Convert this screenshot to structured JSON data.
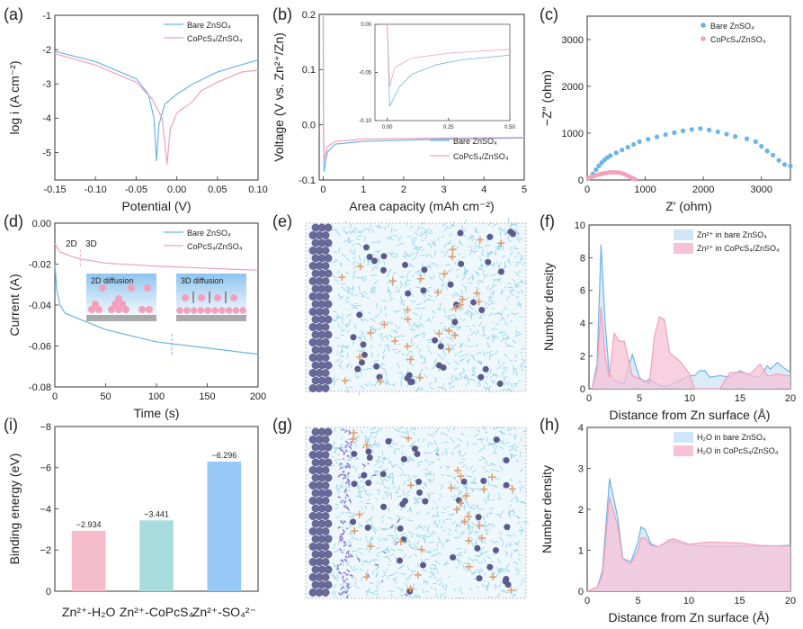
{
  "panel_labels": [
    "(a)",
    "(b)",
    "(c)",
    "(d)",
    "(e)",
    "(f)",
    "(g)",
    "(h)",
    "(i)"
  ],
  "colors": {
    "bare": "#6ab4e8",
    "copcs4": "#f2a0bb",
    "bare_fill": "#cfe6f7",
    "copcs4_fill": "#f6c2d5",
    "axis": "#555555",
    "zn_atom": "#6a6a9a",
    "water": "#8fd0e6",
    "ion": "#5a5a8c",
    "sulfate": "#e0a070",
    "copcs4_mol": "#8a70d0"
  },
  "chart_data": [
    {
      "id": "a",
      "type": "line",
      "xlabel": "Potential (V)",
      "ylabel": "log i (A cm⁻²)",
      "xlim": [
        -0.15,
        0.1
      ],
      "ylim": [
        -5.8,
        -1
      ],
      "xticks": [
        -0.15,
        -0.1,
        -0.05,
        0,
        0.05,
        0.1
      ],
      "xtick_labels": [
        "-0.15",
        "-0.10",
        "-0.05",
        "0.00",
        "0.05",
        "0.10"
      ],
      "yticks": [
        -5,
        -4,
        -3,
        -2,
        -1
      ],
      "ytick_labels": [
        "-5",
        "-4",
        "-3",
        "-2",
        "-1"
      ],
      "legend": "top-right",
      "series": [
        {
          "name": "Bare ZnSO₄",
          "color": "#6ab4e8",
          "x": [
            -0.15,
            -0.1,
            -0.05,
            -0.035,
            -0.028,
            -0.025,
            -0.022,
            -0.015,
            0,
            0.02,
            0.05,
            0.1
          ],
          "y": [
            -2.05,
            -2.35,
            -2.85,
            -3.3,
            -4,
            -5.25,
            -4.2,
            -3.6,
            -3.3,
            -3.0,
            -2.65,
            -2.3
          ]
        },
        {
          "name": "CoPcS₄/ZnSO₄",
          "color": "#f2a0bb",
          "x": [
            -0.15,
            -0.1,
            -0.05,
            -0.03,
            -0.018,
            -0.012,
            -0.008,
            0,
            0.02,
            0.03,
            0.05,
            0.08,
            0.1
          ],
          "y": [
            -2.12,
            -2.45,
            -2.95,
            -3.45,
            -4,
            -5.35,
            -4.3,
            -3.85,
            -3.5,
            -3.2,
            -2.95,
            -2.65,
            -2.6
          ]
        }
      ]
    },
    {
      "id": "b",
      "type": "line",
      "xlabel": "Area capacity (mAh cm⁻²)",
      "ylabel": "Voltage (V vs. Zn²⁺/Zn)",
      "xlim": [
        -0.1,
        5
      ],
      "ylim": [
        -0.1,
        0.2
      ],
      "xticks": [
        0,
        1,
        2,
        3,
        4,
        5
      ],
      "xtick_labels": [
        "0",
        "1",
        "2",
        "3",
        "4",
        "5"
      ],
      "yticks": [
        -0.1,
        0,
        0.1,
        0.2
      ],
      "ytick_labels": [
        "-0.1",
        "0.0",
        "0.1",
        "0.2"
      ],
      "legend": "bottom-right",
      "series": [
        {
          "name": "Bare ZnSO₄",
          "color": "#6ab4e8",
          "x": [
            0,
            0.005,
            0.02,
            0.1,
            0.3,
            1,
            3,
            5
          ],
          "y": [
            0.2,
            0,
            -0.085,
            -0.05,
            -0.035,
            -0.03,
            -0.026,
            -0.024
          ]
        },
        {
          "name": "CoPcS₄/ZnSO₄",
          "color": "#f2a0bb",
          "x": [
            0,
            0.005,
            0.02,
            0.1,
            0.3,
            1,
            3,
            5
          ],
          "y": [
            0.2,
            0,
            -0.065,
            -0.04,
            -0.03,
            -0.026,
            -0.024,
            -0.023
          ]
        }
      ]
    },
    {
      "id": "b-inset",
      "type": "line",
      "xlabel": "",
      "ylabel": "",
      "xlim": [
        -0.05,
        0.5
      ],
      "ylim": [
        -0.1,
        0
      ],
      "xticks": [
        0,
        0.25,
        0.5
      ],
      "xtick_labels": [
        "0.00",
        "0.25",
        "0.50"
      ],
      "yticks": [
        -0.1,
        -0.05,
        0
      ],
      "ytick_labels": [
        "-0.10",
        "-0.05",
        "0.00"
      ],
      "series": [
        {
          "color": "#6ab4e8",
          "x": [
            0,
            0.01,
            0.05,
            0.1,
            0.2,
            0.3,
            0.5
          ],
          "y": [
            0,
            -0.085,
            -0.065,
            -0.052,
            -0.042,
            -0.037,
            -0.032
          ]
        },
        {
          "color": "#f2a0bb",
          "x": [
            0,
            0.01,
            0.03,
            0.1,
            0.25,
            0.5
          ],
          "y": [
            0,
            -0.065,
            -0.045,
            -0.035,
            -0.03,
            -0.026
          ]
        }
      ]
    },
    {
      "id": "c",
      "type": "scatter",
      "xlabel": "Z′ (ohm)",
      "ylabel": "−Z″ (ohm)",
      "xlim": [
        0,
        3500
      ],
      "ylim": [
        0,
        3500
      ],
      "xticks": [
        0,
        1000,
        2000,
        3000
      ],
      "xtick_labels": [
        "0",
        "1000",
        "2000",
        "3000"
      ],
      "yticks": [
        0,
        1000,
        2000,
        3000
      ],
      "ytick_labels": [
        "0",
        "1000",
        "2000",
        "3000"
      ],
      "legend": "top-right",
      "series": [
        {
          "name": "Bare ZnSO₄",
          "color": "#6ab4e8",
          "x": [
            50,
            100,
            150,
            200,
            250,
            300,
            350,
            400,
            500,
            600,
            700,
            800,
            900,
            1050,
            1200,
            1350,
            1500,
            1650,
            1800,
            1950,
            2100,
            2250,
            2400,
            2550,
            2750,
            2900,
            3000,
            3100,
            3200,
            3300,
            3400,
            3500
          ],
          "y": [
            50,
            130,
            220,
            300,
            370,
            430,
            480,
            520,
            580,
            640,
            700,
            760,
            820,
            870,
            920,
            970,
            1010,
            1050,
            1080,
            1100,
            1070,
            1030,
            980,
            930,
            880,
            820,
            720,
            620,
            530,
            420,
            330,
            300
          ]
        },
        {
          "name": "CoPcS₄/ZnSO₄",
          "color": "#f2a0bb",
          "x": [
            30,
            80,
            130,
            180,
            230,
            280,
            330,
            380,
            430,
            480,
            530,
            580,
            630,
            680,
            730,
            780,
            820
          ],
          "y": [
            40,
            70,
            90,
            110,
            125,
            140,
            150,
            160,
            165,
            165,
            160,
            150,
            130,
            100,
            70,
            40,
            15
          ]
        }
      ]
    },
    {
      "id": "d",
      "type": "line",
      "xlabel": "Time (s)",
      "ylabel": "Current (A)",
      "xlim": [
        0,
        200
      ],
      "ylim": [
        -0.08,
        0
      ],
      "xticks": [
        0,
        50,
        100,
        150,
        200
      ],
      "xtick_labels": [
        "0",
        "50",
        "100",
        "150",
        "200"
      ],
      "yticks": [
        -0.08,
        -0.06,
        -0.04,
        -0.02,
        0
      ],
      "ytick_labels": [
        "-0.08",
        "-0.06",
        "-0.04",
        "-0.02",
        "0.00"
      ],
      "legend": "top-right",
      "series": [
        {
          "name": "Bare ZnSO₄",
          "color": "#6ab4e8",
          "x": [
            0,
            2,
            5,
            10,
            25,
            50,
            100,
            150,
            200
          ],
          "y": [
            -0.02,
            -0.033,
            -0.04,
            -0.044,
            -0.047,
            -0.052,
            -0.058,
            -0.061,
            -0.064
          ]
        },
        {
          "name": "CoPcS₄/ZnSO₄",
          "color": "#f2a0bb",
          "x": [
            0,
            5,
            15,
            25,
            50,
            100,
            150,
            200
          ],
          "y": [
            -0.01,
            -0.014,
            -0.016,
            -0.0175,
            -0.0195,
            -0.021,
            -0.022,
            -0.023
          ]
        }
      ],
      "annotations": {
        "label_2d": "2D",
        "label_3d": "3D",
        "transition_copcs4_s": 25,
        "transition_bare_s": 115,
        "inset_2d": "2D diffusion",
        "inset_3d": "3D diffusion"
      }
    },
    {
      "id": "f",
      "type": "area",
      "xlabel": "Distance from Zn surface (Å)",
      "ylabel": "Number density",
      "xlim": [
        0,
        20
      ],
      "ylim": [
        0,
        10
      ],
      "xticks": [
        0,
        5,
        10,
        15,
        20
      ],
      "xtick_labels": [
        "0",
        "5",
        "10",
        "15",
        "20"
      ],
      "yticks": [
        0,
        2,
        4,
        6,
        8,
        10
      ],
      "ytick_labels": [
        "0",
        "2",
        "4",
        "6",
        "8",
        "10"
      ],
      "legend": "top-right",
      "series": [
        {
          "name": "Zn²⁺ in bare ZnSO₄",
          "color": "#6ab4e8",
          "fill": "#cfe6f7",
          "x": [
            0.3,
            0.8,
            1.2,
            1.6,
            2,
            2.5,
            3,
            3.5,
            4,
            4.3,
            5,
            5.5,
            6,
            6.5,
            7,
            7.5,
            8,
            9,
            10,
            10.5,
            11,
            11.5,
            12,
            13,
            14,
            15,
            16,
            17,
            17.7,
            18,
            18.7,
            19.5,
            20
          ],
          "y": [
            0,
            1.5,
            8.8,
            4,
            1,
            0.5,
            0.4,
            0.3,
            1.5,
            2.1,
            0.7,
            0.4,
            0.6,
            0.4,
            0.2,
            0.15,
            0.2,
            0.5,
            0.8,
            0.8,
            1.1,
            1.1,
            0.7,
            0.8,
            0.7,
            1.1,
            0.8,
            0.7,
            1.4,
            1.2,
            1.6,
            1.2,
            1.0
          ]
        },
        {
          "name": "Zn²⁺ in CoPcS₄/ZnSO₄",
          "color": "#f2a0bb",
          "fill": "#f6c2d5",
          "x": [
            0.3,
            0.8,
            1.2,
            1.6,
            2,
            2.5,
            3,
            3.5,
            4,
            4.3,
            5,
            5.5,
            6,
            6.5,
            7,
            7.5,
            8,
            9,
            10,
            10.5,
            11,
            11.5,
            12,
            13,
            14,
            15,
            16,
            17,
            17.7,
            18,
            18.7,
            19.5,
            20
          ],
          "y": [
            0,
            1.2,
            5,
            2,
            0.7,
            3.4,
            2.9,
            2.9,
            1.6,
            0.8,
            0.6,
            0.5,
            0.35,
            3.2,
            4.4,
            4.2,
            2.2,
            1.7,
            0.9,
            0,
            0,
            0,
            0,
            0,
            1.0,
            1.0,
            0.9,
            1.5,
            0.8,
            0.8,
            0.9,
            0.8,
            0.8
          ]
        }
      ]
    },
    {
      "id": "h",
      "type": "area",
      "xlabel": "Distance from Zn surface (Å)",
      "ylabel": "Number density",
      "xlim": [
        0,
        20
      ],
      "ylim": [
        0,
        4
      ],
      "xticks": [
        0,
        5,
        10,
        15,
        20
      ],
      "xtick_labels": [
        "0",
        "5",
        "10",
        "15",
        "20"
      ],
      "yticks": [
        0,
        1,
        2,
        3,
        4
      ],
      "ytick_labels": [
        "0",
        "1",
        "2",
        "3",
        "4"
      ],
      "legend": "top-right",
      "series": [
        {
          "name": "H₂O in bare ZnSO₄",
          "color": "#6ab4e8",
          "fill": "#cfe6f7",
          "x": [
            0,
            1,
            1.5,
            2.2,
            3,
            3.5,
            4,
            4.3,
            5,
            5.3,
            5.7,
            6.3,
            7,
            8,
            8.5,
            10,
            12,
            15,
            17,
            20
          ],
          "y": [
            0,
            0.1,
            0.5,
            2.75,
            1.8,
            0.8,
            0.75,
            0.72,
            1.2,
            1.57,
            1.5,
            1.15,
            1.08,
            1.2,
            1.22,
            1.12,
            1.1,
            1.1,
            1.1,
            1.12
          ]
        },
        {
          "name": "H₂O in CoPcS₄/ZnSO₄",
          "color": "#f2a0bb",
          "fill": "#f6c2d5",
          "x": [
            0,
            1,
            1.5,
            2.2,
            3,
            3.5,
            4,
            4.3,
            5,
            5.3,
            5.7,
            6.3,
            7,
            8,
            8.5,
            10,
            12,
            15,
            17,
            20
          ],
          "y": [
            0,
            0.1,
            0.4,
            2.3,
            1.6,
            0.8,
            0.7,
            0.68,
            1.0,
            1.3,
            1.3,
            1.12,
            1.08,
            1.25,
            1.28,
            1.15,
            1.2,
            1.18,
            1.12,
            1.1
          ]
        }
      ]
    },
    {
      "id": "i",
      "type": "bar",
      "xlabel": "",
      "ylabel": "Binding energy (eV)",
      "xlim": [
        0,
        3
      ],
      "ylim": [
        0,
        -8
      ],
      "xticks": [],
      "xtick_labels": [],
      "yticks": [
        0,
        -2,
        -4,
        -6,
        -8
      ],
      "ytick_labels": [
        "0",
        "−2",
        "−4",
        "−6",
        "−8"
      ],
      "categories": [
        "Zn²⁺-H₂O",
        "Zn²⁺-CoPcS₄",
        "Zn²⁺-SO₄²⁻"
      ],
      "values": [
        -2.934,
        -3.441,
        -6.296
      ],
      "value_labels": [
        "−2.934",
        "−3.441",
        "−6.296"
      ],
      "bar_colors": [
        "#f4bccb",
        "#a9dcdc",
        "#98c8f5"
      ]
    }
  ]
}
